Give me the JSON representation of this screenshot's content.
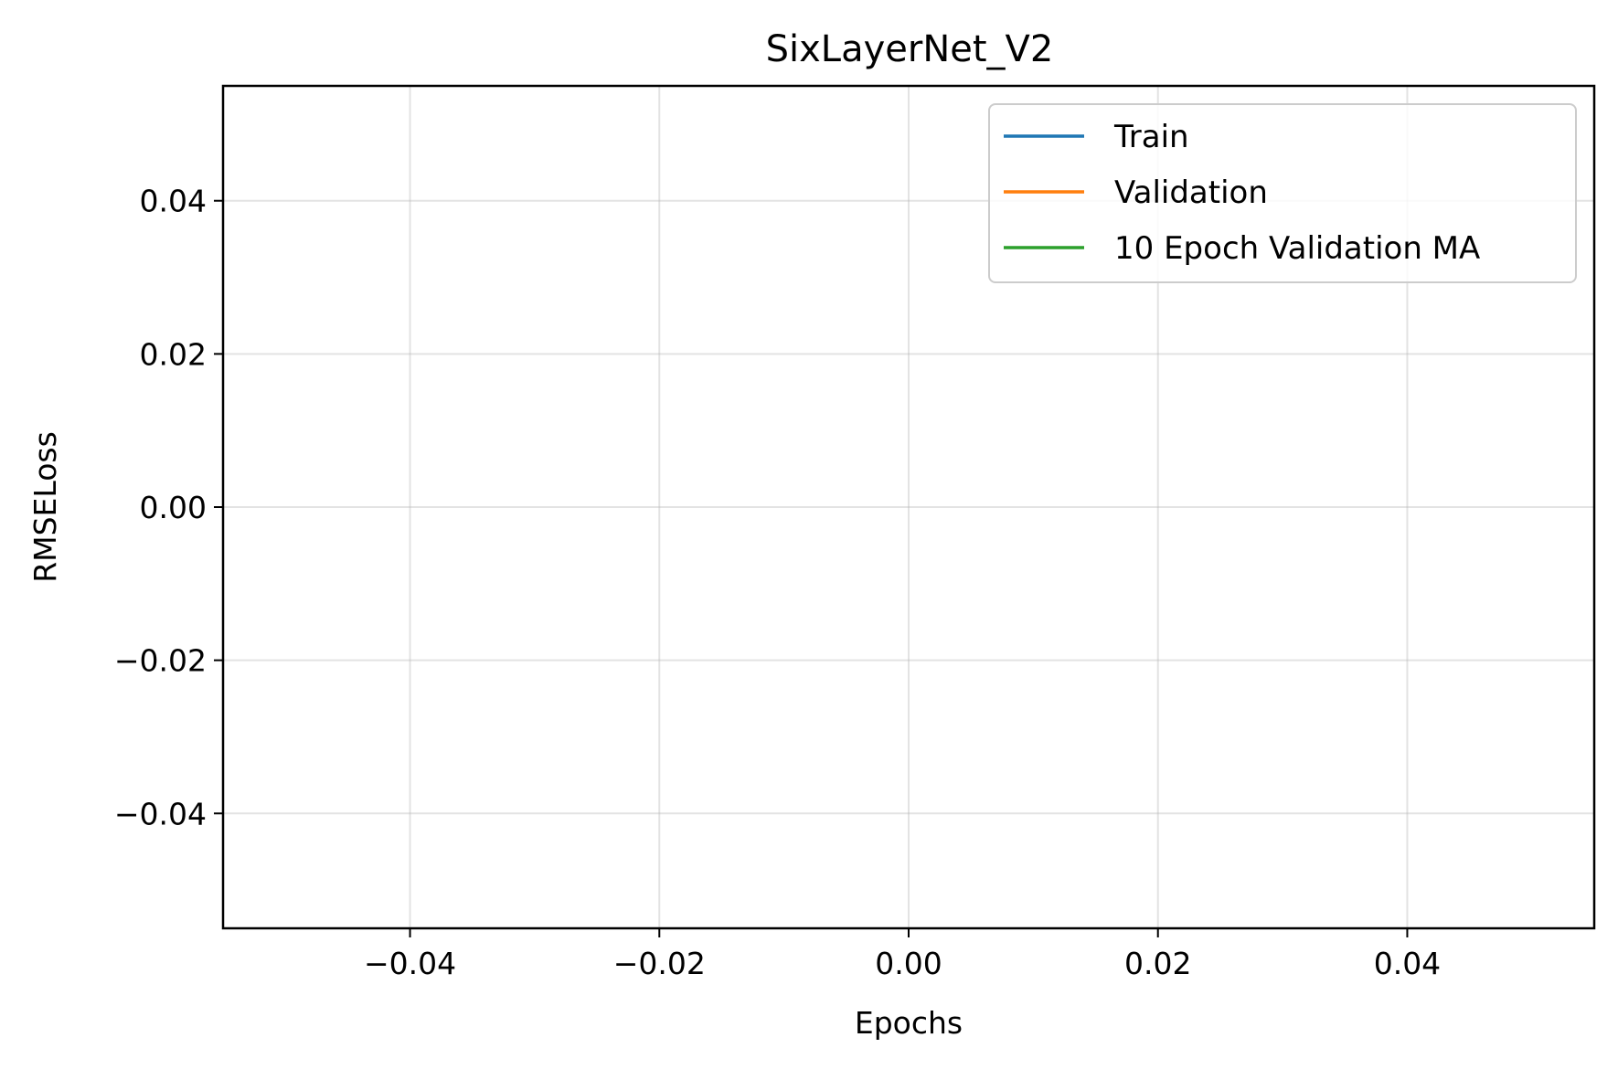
{
  "chart_data": {
    "type": "line",
    "title": "SixLayerNet_V2",
    "xlabel": "Epochs",
    "ylabel": "RMSELoss",
    "xlim": [
      -0.055,
      0.055
    ],
    "ylim": [
      -0.055,
      0.055
    ],
    "x_ticks": [
      -0.04,
      -0.02,
      0.0,
      0.02,
      0.04
    ],
    "x_tick_labels": [
      "−0.04",
      "−0.02",
      "0.00",
      "0.02",
      "0.04"
    ],
    "y_ticks": [
      -0.04,
      -0.02,
      0.0,
      0.02,
      0.04
    ],
    "y_tick_labels": [
      "−0.04",
      "−0.02",
      "0.00",
      "0.02",
      "0.04"
    ],
    "grid": true,
    "legend_position": "top-right",
    "series": [
      {
        "name": "Train",
        "color": "#1f77b4",
        "x": [],
        "y": []
      },
      {
        "name": "Validation",
        "color": "#ff7f0e",
        "x": [],
        "y": []
      },
      {
        "name": "10 Epoch Validation MA",
        "color": "#2ca02c",
        "x": [],
        "y": []
      }
    ]
  }
}
